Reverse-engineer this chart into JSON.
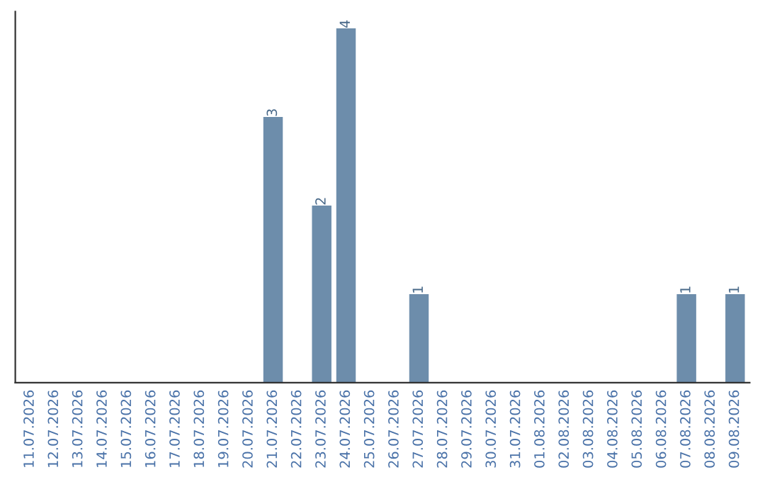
{
  "chart_data": {
    "type": "bar",
    "categories": [
      "11.07.2026",
      "12.07.2026",
      "13.07.2026",
      "14.07.2026",
      "15.07.2026",
      "16.07.2026",
      "17.07.2026",
      "18.07.2026",
      "19.07.2026",
      "20.07.2026",
      "21.07.2026",
      "22.07.2026",
      "23.07.2026",
      "24.07.2026",
      "25.07.2026",
      "26.07.2026",
      "27.07.2026",
      "28.07.2026",
      "29.07.2026",
      "30.07.2026",
      "31.07.2026",
      "01.08.2026",
      "02.08.2026",
      "03.08.2026",
      "04.08.2026",
      "05.08.2026",
      "06.08.2026",
      "07.08.2026",
      "08.08.2026",
      "09.08.2026"
    ],
    "values": [
      0,
      0,
      0,
      0,
      0,
      0,
      0,
      0,
      0,
      0,
      3,
      0,
      2,
      4,
      0,
      0,
      1,
      0,
      0,
      0,
      0,
      0,
      0,
      0,
      0,
      0,
      0,
      1,
      0,
      1
    ],
    "value_labels": [
      null,
      null,
      null,
      null,
      null,
      null,
      null,
      null,
      null,
      null,
      "3",
      null,
      "2",
      "4",
      null,
      null,
      "1",
      null,
      null,
      null,
      null,
      null,
      null,
      null,
      null,
      null,
      null,
      "1",
      null,
      "1"
    ],
    "color": "#6d8dab",
    "ylim": [
      0,
      4.19
    ],
    "tick_labels": "x",
    "grid": false,
    "legend": false
  }
}
